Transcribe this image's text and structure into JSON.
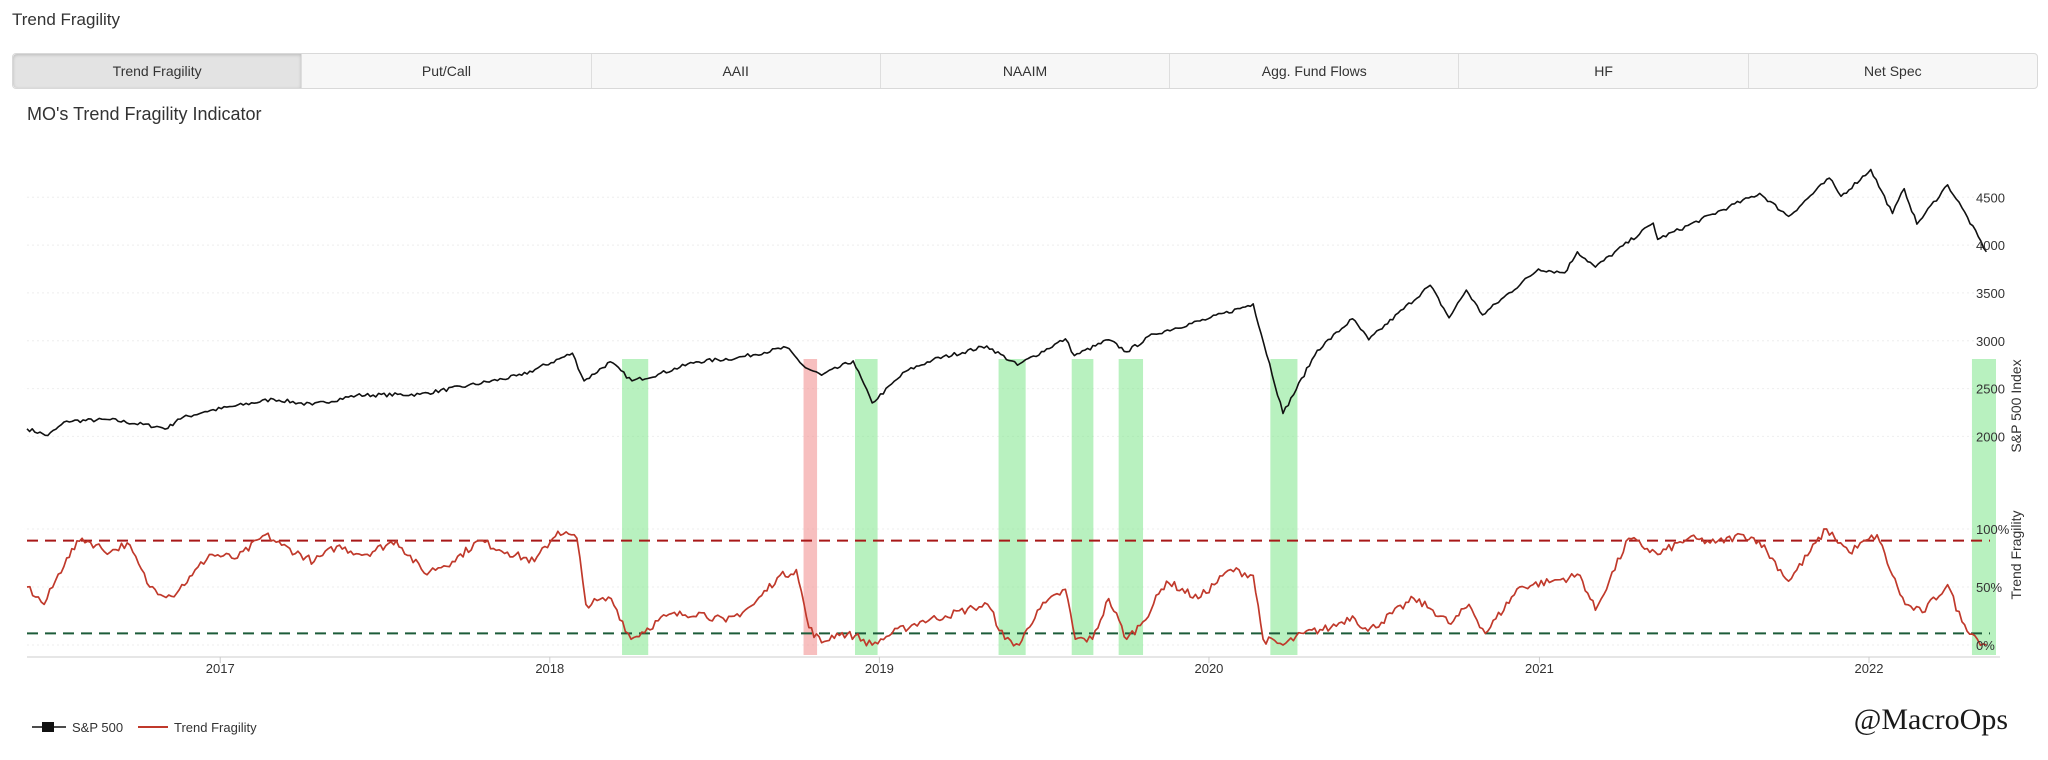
{
  "app": {
    "title": "Trend Fragility"
  },
  "tabs": [
    {
      "label": "Trend Fragility",
      "active": true
    },
    {
      "label": "Put/Call"
    },
    {
      "label": "AAII"
    },
    {
      "label": "NAAIM"
    },
    {
      "label": "Agg. Fund Flows"
    },
    {
      "label": "HF"
    },
    {
      "label": "Net Spec"
    }
  ],
  "watermark": "@MacroOps",
  "chart_data": {
    "type": "line",
    "title": "MO's Trend Fragility Indicator",
    "x_range": [
      "2016-06-01",
      "2022-05-15"
    ],
    "x_ticks": [
      "2017",
      "2018",
      "2019",
      "2020",
      "2021",
      "2022"
    ],
    "axes": {
      "spx": {
        "label": "S&P 500 Index",
        "range": [
          1900,
          4900
        ],
        "ticks": [
          "2000",
          "2500",
          "3000",
          "3500",
          "4000",
          "4500"
        ]
      },
      "tf": {
        "label": "Trend Fragility",
        "range": [
          0,
          100
        ],
        "ticks": [
          "0%",
          "50%",
          "100%"
        ]
      }
    },
    "series": [
      {
        "name": "S&P 500",
        "axis": "spx",
        "color": "#111111",
        "points": [
          [
            "2016-06-01",
            2080
          ],
          [
            "2016-06-24",
            2010
          ],
          [
            "2016-07-15",
            2160
          ],
          [
            "2016-09-01",
            2175
          ],
          [
            "2016-11-04",
            2085
          ],
          [
            "2016-11-15",
            2180
          ],
          [
            "2016-12-15",
            2260
          ],
          [
            "2017-03-01",
            2390
          ],
          [
            "2017-04-13",
            2330
          ],
          [
            "2017-06-01",
            2430
          ],
          [
            "2017-08-10",
            2440
          ],
          [
            "2017-10-02",
            2530
          ],
          [
            "2017-12-01",
            2640
          ],
          [
            "2018-01-26",
            2870
          ],
          [
            "2018-02-08",
            2580
          ],
          [
            "2018-03-09",
            2780
          ],
          [
            "2018-04-02",
            2580
          ],
          [
            "2018-05-01",
            2650
          ],
          [
            "2018-06-12",
            2780
          ],
          [
            "2018-07-27",
            2820
          ],
          [
            "2018-09-20",
            2930
          ],
          [
            "2018-10-11",
            2720
          ],
          [
            "2018-10-29",
            2640
          ],
          [
            "2018-12-03",
            2790
          ],
          [
            "2018-12-24",
            2350
          ],
          [
            "2019-01-30",
            2680
          ],
          [
            "2019-03-01",
            2800
          ],
          [
            "2019-04-30",
            2945
          ],
          [
            "2019-06-03",
            2745
          ],
          [
            "2019-07-26",
            3020
          ],
          [
            "2019-08-05",
            2845
          ],
          [
            "2019-09-12",
            3010
          ],
          [
            "2019-10-02",
            2885
          ],
          [
            "2019-11-01",
            3070
          ],
          [
            "2019-12-31",
            3230
          ],
          [
            "2020-02-19",
            3385
          ],
          [
            "2020-03-23",
            2240
          ],
          [
            "2020-04-30",
            2900
          ],
          [
            "2020-06-08",
            3230
          ],
          [
            "2020-06-26",
            3010
          ],
          [
            "2020-09-02",
            3580
          ],
          [
            "2020-09-23",
            3240
          ],
          [
            "2020-10-12",
            3530
          ],
          [
            "2020-10-30",
            3270
          ],
          [
            "2020-12-31",
            3750
          ],
          [
            "2021-01-29",
            3710
          ],
          [
            "2021-02-12",
            3930
          ],
          [
            "2021-03-04",
            3770
          ],
          [
            "2021-05-07",
            4230
          ],
          [
            "2021-05-12",
            4060
          ],
          [
            "2021-07-30",
            4400
          ],
          [
            "2021-09-02",
            4540
          ],
          [
            "2021-10-04",
            4300
          ],
          [
            "2021-11-18",
            4700
          ],
          [
            "2021-12-01",
            4510
          ],
          [
            "2022-01-03",
            4790
          ],
          [
            "2022-01-27",
            4330
          ],
          [
            "2022-02-09",
            4590
          ],
          [
            "2022-02-23",
            4220
          ],
          [
            "2022-03-29",
            4630
          ],
          [
            "2022-04-14",
            4390
          ],
          [
            "2022-05-11",
            3930
          ]
        ]
      },
      {
        "name": "Trend Fragility",
        "axis": "tf",
        "color": "#c0392b",
        "points": [
          [
            "2016-06-01",
            50
          ],
          [
            "2016-06-20",
            35
          ],
          [
            "2016-07-15",
            75
          ],
          [
            "2016-08-01",
            92
          ],
          [
            "2016-09-01",
            80
          ],
          [
            "2016-09-20",
            88
          ],
          [
            "2016-10-15",
            50
          ],
          [
            "2016-11-08",
            42
          ],
          [
            "2016-12-01",
            60
          ],
          [
            "2016-12-20",
            78
          ],
          [
            "2017-01-20",
            75
          ],
          [
            "2017-02-20",
            95
          ],
          [
            "2017-03-10",
            86
          ],
          [
            "2017-04-15",
            72
          ],
          [
            "2017-05-10",
            85
          ],
          [
            "2017-06-10",
            78
          ],
          [
            "2017-07-15",
            90
          ],
          [
            "2017-08-15",
            62
          ],
          [
            "2017-09-15",
            72
          ],
          [
            "2017-10-15",
            90
          ],
          [
            "2017-11-15",
            80
          ],
          [
            "2017-12-15",
            72
          ],
          [
            "2018-01-10",
            98
          ],
          [
            "2018-01-31",
            92
          ],
          [
            "2018-02-10",
            35
          ],
          [
            "2018-03-10",
            40
          ],
          [
            "2018-04-01",
            5
          ],
          [
            "2018-05-10",
            25
          ],
          [
            "2018-06-15",
            28
          ],
          [
            "2018-07-15",
            20
          ],
          [
            "2018-08-15",
            35
          ],
          [
            "2018-09-10",
            58
          ],
          [
            "2018-10-01",
            65
          ],
          [
            "2018-10-15",
            15
          ],
          [
            "2018-10-29",
            2
          ],
          [
            "2018-11-15",
            10
          ],
          [
            "2018-12-05",
            8
          ],
          [
            "2018-12-24",
            0
          ],
          [
            "2019-01-15",
            10
          ],
          [
            "2019-02-15",
            20
          ],
          [
            "2019-03-15",
            25
          ],
          [
            "2019-04-15",
            32
          ],
          [
            "2019-05-01",
            35
          ],
          [
            "2019-05-20",
            5
          ],
          [
            "2019-06-05",
            0
          ],
          [
            "2019-06-25",
            30
          ],
          [
            "2019-07-26",
            48
          ],
          [
            "2019-08-06",
            5
          ],
          [
            "2019-08-25",
            5
          ],
          [
            "2019-09-12",
            40
          ],
          [
            "2019-10-02",
            5
          ],
          [
            "2019-10-20",
            20
          ],
          [
            "2019-11-15",
            55
          ],
          [
            "2019-12-20",
            40
          ],
          [
            "2020-01-25",
            65
          ],
          [
            "2020-02-19",
            60
          ],
          [
            "2020-03-01",
            5
          ],
          [
            "2020-03-23",
            0
          ],
          [
            "2020-04-15",
            10
          ],
          [
            "2020-05-15",
            15
          ],
          [
            "2020-06-08",
            25
          ],
          [
            "2020-06-25",
            12
          ],
          [
            "2020-08-15",
            40
          ],
          [
            "2020-09-05",
            30
          ],
          [
            "2020-09-25",
            18
          ],
          [
            "2020-10-15",
            35
          ],
          [
            "2020-11-02",
            10
          ],
          [
            "2020-12-10",
            50
          ],
          [
            "2021-01-15",
            55
          ],
          [
            "2021-02-15",
            60
          ],
          [
            "2021-03-04",
            30
          ],
          [
            "2021-04-10",
            92
          ],
          [
            "2021-05-12",
            78
          ],
          [
            "2021-06-15",
            92
          ],
          [
            "2021-07-15",
            88
          ],
          [
            "2021-08-15",
            95
          ],
          [
            "2021-09-01",
            90
          ],
          [
            "2021-10-04",
            55
          ],
          [
            "2021-11-15",
            100
          ],
          [
            "2021-12-10",
            80
          ],
          [
            "2022-01-10",
            95
          ],
          [
            "2022-01-27",
            60
          ],
          [
            "2022-02-10",
            35
          ],
          [
            "2022-03-01",
            28
          ],
          [
            "2022-03-29",
            52
          ],
          [
            "2022-04-14",
            20
          ],
          [
            "2022-05-01",
            5
          ],
          [
            "2022-05-11",
            0
          ]
        ]
      }
    ],
    "thresholds": [
      {
        "value": 90,
        "axis": "tf",
        "color": "#a81818"
      },
      {
        "value": 10,
        "axis": "tf",
        "color": "#1d5c3a"
      }
    ],
    "highlights": [
      {
        "start": "2018-03-22",
        "end": "2018-04-20",
        "color": "#7ee68a"
      },
      {
        "start": "2018-10-09",
        "end": "2018-10-24",
        "color": "#f08a8a"
      },
      {
        "start": "2018-12-05",
        "end": "2018-12-30",
        "color": "#7ee68a"
      },
      {
        "start": "2019-05-13",
        "end": "2019-06-12",
        "color": "#7ee68a"
      },
      {
        "start": "2019-08-02",
        "end": "2019-08-26",
        "color": "#7ee68a"
      },
      {
        "start": "2019-09-23",
        "end": "2019-10-20",
        "color": "#7ee68a"
      },
      {
        "start": "2020-03-09",
        "end": "2020-04-08",
        "color": "#7ee68a"
      },
      {
        "start": "2022-04-25",
        "end": "2022-05-25",
        "color": "#7ee68a"
      }
    ],
    "grid": true,
    "legend_position": "bottom-left"
  }
}
